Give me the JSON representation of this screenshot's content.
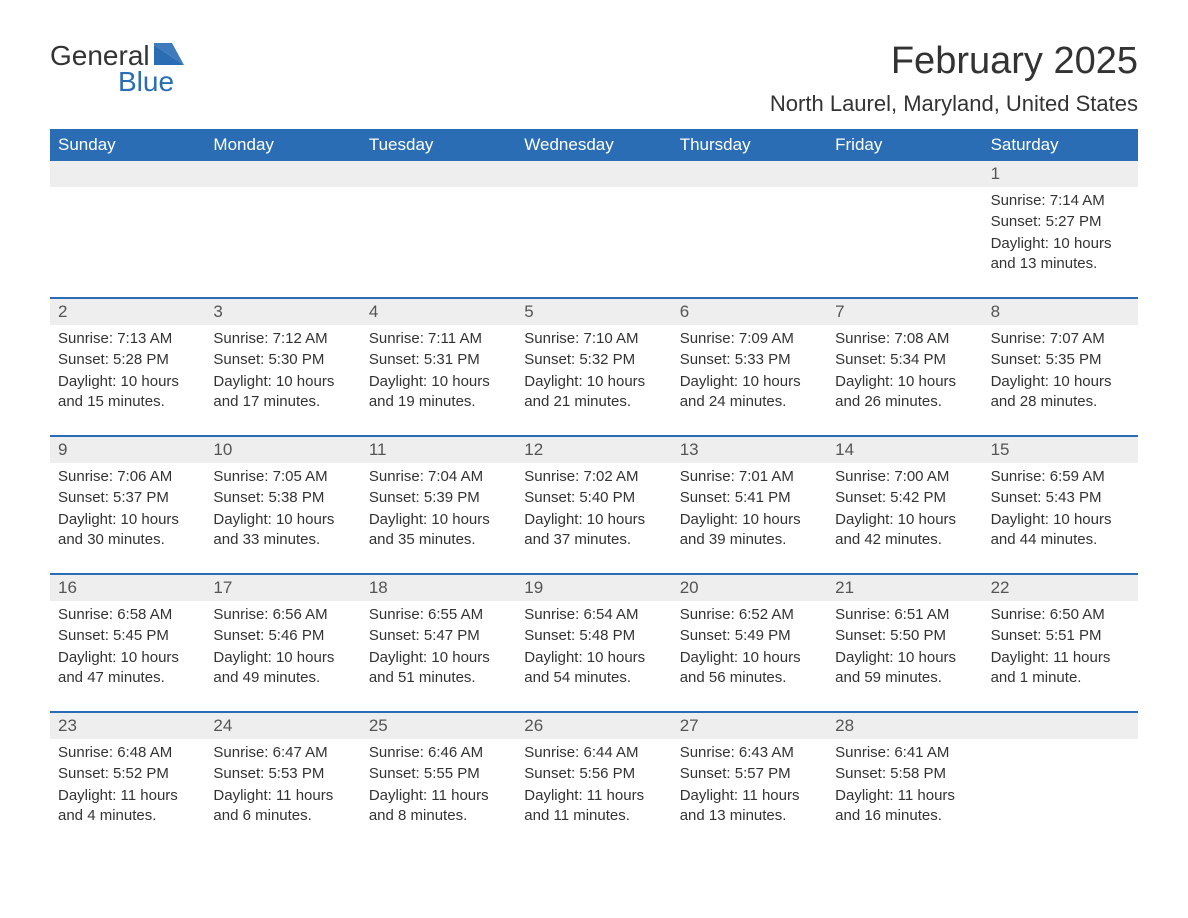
{
  "logo": {
    "part1": "General",
    "part2": "Blue"
  },
  "title": "February 2025",
  "location": "North Laurel, Maryland, United States",
  "colors": {
    "header_bg": "#2a6db5",
    "header_text": "#ffffff",
    "daynum_bg": "#eeeeee",
    "border_top": "#2a6db5",
    "text": "#333333",
    "background": "#ffffff"
  },
  "typography": {
    "title_fontsize": 38,
    "location_fontsize": 22,
    "dayheader_fontsize": 17,
    "daynum_fontsize": 17,
    "dayinfo_fontsize": 15,
    "logo_fontsize": 28
  },
  "day_headers": [
    "Sunday",
    "Monday",
    "Tuesday",
    "Wednesday",
    "Thursday",
    "Friday",
    "Saturday"
  ],
  "weeks": [
    [
      {
        "num": "",
        "sunrise": "",
        "sunset": "",
        "daylight": ""
      },
      {
        "num": "",
        "sunrise": "",
        "sunset": "",
        "daylight": ""
      },
      {
        "num": "",
        "sunrise": "",
        "sunset": "",
        "daylight": ""
      },
      {
        "num": "",
        "sunrise": "",
        "sunset": "",
        "daylight": ""
      },
      {
        "num": "",
        "sunrise": "",
        "sunset": "",
        "daylight": ""
      },
      {
        "num": "",
        "sunrise": "",
        "sunset": "",
        "daylight": ""
      },
      {
        "num": "1",
        "sunrise": "Sunrise: 7:14 AM",
        "sunset": "Sunset: 5:27 PM",
        "daylight": "Daylight: 10 hours and 13 minutes."
      }
    ],
    [
      {
        "num": "2",
        "sunrise": "Sunrise: 7:13 AM",
        "sunset": "Sunset: 5:28 PM",
        "daylight": "Daylight: 10 hours and 15 minutes."
      },
      {
        "num": "3",
        "sunrise": "Sunrise: 7:12 AM",
        "sunset": "Sunset: 5:30 PM",
        "daylight": "Daylight: 10 hours and 17 minutes."
      },
      {
        "num": "4",
        "sunrise": "Sunrise: 7:11 AM",
        "sunset": "Sunset: 5:31 PM",
        "daylight": "Daylight: 10 hours and 19 minutes."
      },
      {
        "num": "5",
        "sunrise": "Sunrise: 7:10 AM",
        "sunset": "Sunset: 5:32 PM",
        "daylight": "Daylight: 10 hours and 21 minutes."
      },
      {
        "num": "6",
        "sunrise": "Sunrise: 7:09 AM",
        "sunset": "Sunset: 5:33 PM",
        "daylight": "Daylight: 10 hours and 24 minutes."
      },
      {
        "num": "7",
        "sunrise": "Sunrise: 7:08 AM",
        "sunset": "Sunset: 5:34 PM",
        "daylight": "Daylight: 10 hours and 26 minutes."
      },
      {
        "num": "8",
        "sunrise": "Sunrise: 7:07 AM",
        "sunset": "Sunset: 5:35 PM",
        "daylight": "Daylight: 10 hours and 28 minutes."
      }
    ],
    [
      {
        "num": "9",
        "sunrise": "Sunrise: 7:06 AM",
        "sunset": "Sunset: 5:37 PM",
        "daylight": "Daylight: 10 hours and 30 minutes."
      },
      {
        "num": "10",
        "sunrise": "Sunrise: 7:05 AM",
        "sunset": "Sunset: 5:38 PM",
        "daylight": "Daylight: 10 hours and 33 minutes."
      },
      {
        "num": "11",
        "sunrise": "Sunrise: 7:04 AM",
        "sunset": "Sunset: 5:39 PM",
        "daylight": "Daylight: 10 hours and 35 minutes."
      },
      {
        "num": "12",
        "sunrise": "Sunrise: 7:02 AM",
        "sunset": "Sunset: 5:40 PM",
        "daylight": "Daylight: 10 hours and 37 minutes."
      },
      {
        "num": "13",
        "sunrise": "Sunrise: 7:01 AM",
        "sunset": "Sunset: 5:41 PM",
        "daylight": "Daylight: 10 hours and 39 minutes."
      },
      {
        "num": "14",
        "sunrise": "Sunrise: 7:00 AM",
        "sunset": "Sunset: 5:42 PM",
        "daylight": "Daylight: 10 hours and 42 minutes."
      },
      {
        "num": "15",
        "sunrise": "Sunrise: 6:59 AM",
        "sunset": "Sunset: 5:43 PM",
        "daylight": "Daylight: 10 hours and 44 minutes."
      }
    ],
    [
      {
        "num": "16",
        "sunrise": "Sunrise: 6:58 AM",
        "sunset": "Sunset: 5:45 PM",
        "daylight": "Daylight: 10 hours and 47 minutes."
      },
      {
        "num": "17",
        "sunrise": "Sunrise: 6:56 AM",
        "sunset": "Sunset: 5:46 PM",
        "daylight": "Daylight: 10 hours and 49 minutes."
      },
      {
        "num": "18",
        "sunrise": "Sunrise: 6:55 AM",
        "sunset": "Sunset: 5:47 PM",
        "daylight": "Daylight: 10 hours and 51 minutes."
      },
      {
        "num": "19",
        "sunrise": "Sunrise: 6:54 AM",
        "sunset": "Sunset: 5:48 PM",
        "daylight": "Daylight: 10 hours and 54 minutes."
      },
      {
        "num": "20",
        "sunrise": "Sunrise: 6:52 AM",
        "sunset": "Sunset: 5:49 PM",
        "daylight": "Daylight: 10 hours and 56 minutes."
      },
      {
        "num": "21",
        "sunrise": "Sunrise: 6:51 AM",
        "sunset": "Sunset: 5:50 PM",
        "daylight": "Daylight: 10 hours and 59 minutes."
      },
      {
        "num": "22",
        "sunrise": "Sunrise: 6:50 AM",
        "sunset": "Sunset: 5:51 PM",
        "daylight": "Daylight: 11 hours and 1 minute."
      }
    ],
    [
      {
        "num": "23",
        "sunrise": "Sunrise: 6:48 AM",
        "sunset": "Sunset: 5:52 PM",
        "daylight": "Daylight: 11 hours and 4 minutes."
      },
      {
        "num": "24",
        "sunrise": "Sunrise: 6:47 AM",
        "sunset": "Sunset: 5:53 PM",
        "daylight": "Daylight: 11 hours and 6 minutes."
      },
      {
        "num": "25",
        "sunrise": "Sunrise: 6:46 AM",
        "sunset": "Sunset: 5:55 PM",
        "daylight": "Daylight: 11 hours and 8 minutes."
      },
      {
        "num": "26",
        "sunrise": "Sunrise: 6:44 AM",
        "sunset": "Sunset: 5:56 PM",
        "daylight": "Daylight: 11 hours and 11 minutes."
      },
      {
        "num": "27",
        "sunrise": "Sunrise: 6:43 AM",
        "sunset": "Sunset: 5:57 PM",
        "daylight": "Daylight: 11 hours and 13 minutes."
      },
      {
        "num": "28",
        "sunrise": "Sunrise: 6:41 AM",
        "sunset": "Sunset: 5:58 PM",
        "daylight": "Daylight: 11 hours and 16 minutes."
      },
      {
        "num": "",
        "sunrise": "",
        "sunset": "",
        "daylight": ""
      }
    ]
  ]
}
